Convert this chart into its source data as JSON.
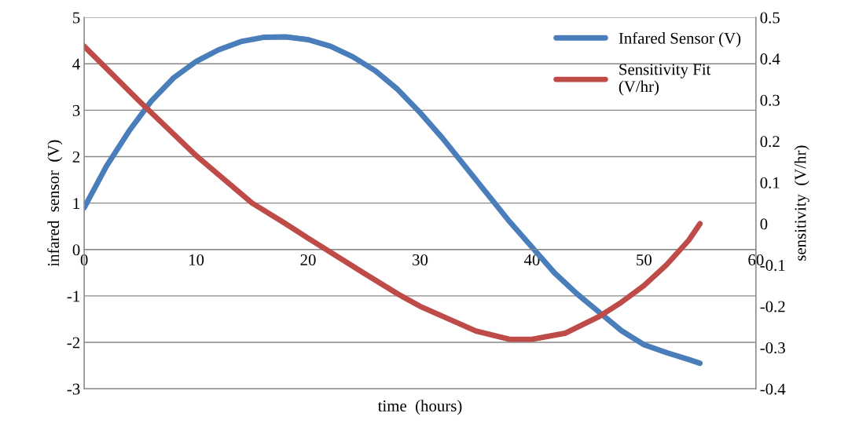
{
  "chart_data": {
    "type": "line",
    "xlabel": "time  (hours)",
    "ylabel": "infared  sensor  (V)",
    "y2label": "sensitivity  (V/hr)",
    "xlim": [
      0,
      60
    ],
    "xticks": [
      0,
      10,
      20,
      30,
      40,
      50,
      60
    ],
    "ylim": [
      -3,
      5
    ],
    "yticks": [
      -3,
      -2,
      -1,
      0,
      1,
      2,
      3,
      4,
      5
    ],
    "y2lim": [
      -0.4,
      0.5
    ],
    "y2ticks": [
      -0.4,
      -0.3,
      -0.2,
      -0.1,
      0,
      0.1,
      0.2,
      0.3,
      0.4,
      0.5
    ],
    "grid": "y",
    "legend": "top right",
    "marker": "none",
    "line_style": "solid",
    "series": [
      {
        "name": "Infared Sensor (V)",
        "color": "#4a7ebb",
        "x": [
          0,
          2,
          4,
          6,
          8,
          10,
          12,
          14,
          16,
          18,
          20,
          22,
          24,
          26,
          28,
          30,
          32,
          34,
          36,
          38,
          40,
          42,
          44,
          46,
          48,
          50,
          52,
          54,
          55
        ],
        "values": [
          0.9,
          1.8,
          2.55,
          3.2,
          3.7,
          4.05,
          4.3,
          4.48,
          4.57,
          4.58,
          4.52,
          4.38,
          4.15,
          3.85,
          3.45,
          2.95,
          2.4,
          1.8,
          1.2,
          0.6,
          0.05,
          -0.5,
          -0.95,
          -1.35,
          -1.75,
          -2.05,
          -2.22,
          -2.37,
          -2.45
        ]
      },
      {
        "name": "Sensitivity Fit\n(V/hr)",
        "color": "#be4b48",
        "axis": "y2",
        "x": [
          0,
          5,
          10,
          15,
          18,
          20,
          25,
          28,
          30,
          35,
          38,
          40,
          43,
          46,
          48,
          50,
          52,
          54,
          55
        ],
        "values": [
          0.43,
          0.295,
          0.165,
          0.05,
          0.0,
          -0.035,
          -0.12,
          -0.17,
          -0.2,
          -0.26,
          -0.28,
          -0.28,
          -0.265,
          -0.225,
          -0.19,
          -0.15,
          -0.1,
          -0.04,
          0.0
        ]
      }
    ]
  }
}
